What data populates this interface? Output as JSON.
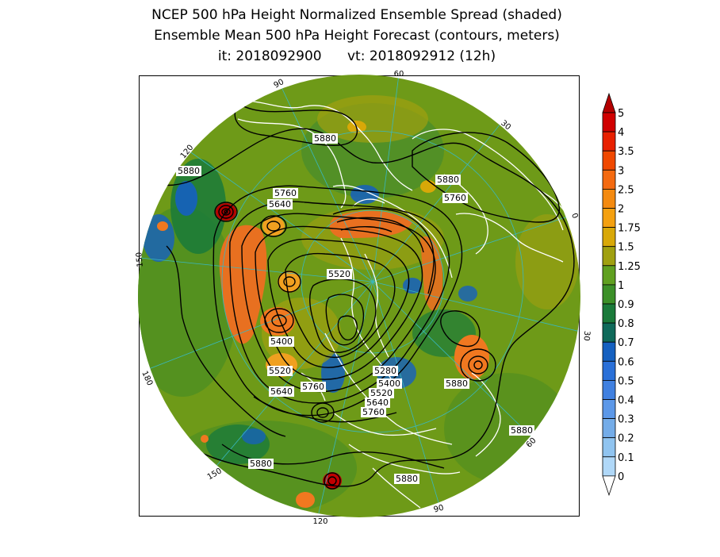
{
  "title": {
    "line1": "NCEP 500 hPa Height Normalized Ensemble Spread (shaded)",
    "line2": "Ensemble Mean 500 hPa Height Forecast (contours, meters)",
    "line3": "it: 2018092900      vt: 2018092912 (12h)"
  },
  "longitude_labels": [
    "90",
    "60",
    "30",
    "0",
    "30",
    "60",
    "90",
    "120",
    "150",
    "180",
    "150",
    "120"
  ],
  "contour_labels": [
    "5880",
    "5880",
    "5760",
    "5640",
    "5880",
    "5760",
    "5520",
    "5400",
    "5520",
    "5640",
    "5760",
    "5280",
    "5400",
    "5520",
    "5640",
    "5760",
    "5880",
    "5880",
    "5880",
    "5880"
  ],
  "colorbar": {
    "labels": [
      "5",
      "4",
      "3.5",
      "3",
      "2.5",
      "2",
      "1.75",
      "1.5",
      "1.25",
      "1",
      "0.9",
      "0.8",
      "0.7",
      "0.6",
      "0.5",
      "0.4",
      "0.3",
      "0.2",
      "0.1",
      "0"
    ],
    "colors": [
      "#b40000",
      "#d00000",
      "#e82000",
      "#f04800",
      "#f46a10",
      "#f48a10",
      "#f4a010",
      "#d8a808",
      "#a0a010",
      "#60a020",
      "#3c9028",
      "#1a7a3a",
      "#0f6a5a",
      "#1560c0",
      "#2a70d8",
      "#4080e0",
      "#5c98e8",
      "#74ace8",
      "#90c4f0",
      "#b0d8f8"
    ],
    "low_cap_color": "#ffffff"
  },
  "colors": {
    "contour": "#000000",
    "coastline": "#ffffff",
    "graticule": "#38b8c0",
    "base_field": "#6e9a18"
  }
}
